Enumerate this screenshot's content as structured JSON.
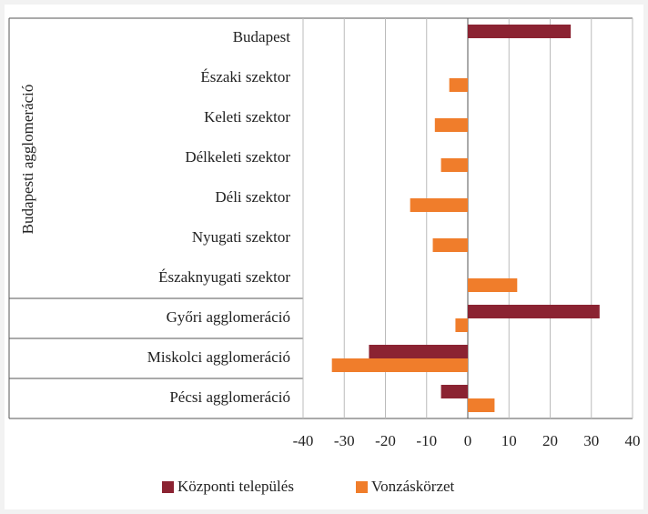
{
  "chart_data": {
    "type": "barh",
    "group_label": "Budapesti agglomeráció",
    "categories": [
      "Budapest",
      "Északi szektor",
      "Keleti szektor",
      "Délkeleti szektor",
      "Déli szektor",
      "Nyugati szektor",
      "Északnyugati szektor",
      "Győri agglomeráció",
      "Miskolci agglomeráció",
      "Pécsi agglomeráció"
    ],
    "series": [
      {
        "name": "Központi település",
        "color": "#8b2332",
        "values": [
          25,
          null,
          null,
          null,
          null,
          null,
          null,
          32,
          -24,
          -6.5
        ]
      },
      {
        "name": "Vonzáskörzet",
        "color": "#f07d2b",
        "values": [
          null,
          -4.5,
          -8,
          -6.5,
          -14,
          -8.5,
          12,
          -3,
          -33,
          6.5
        ]
      }
    ],
    "xlim": [
      -40,
      40
    ],
    "xticks": [
      -40,
      -30,
      -20,
      -10,
      0,
      10,
      20,
      30,
      40
    ],
    "grid": true,
    "legend": "bottom"
  }
}
